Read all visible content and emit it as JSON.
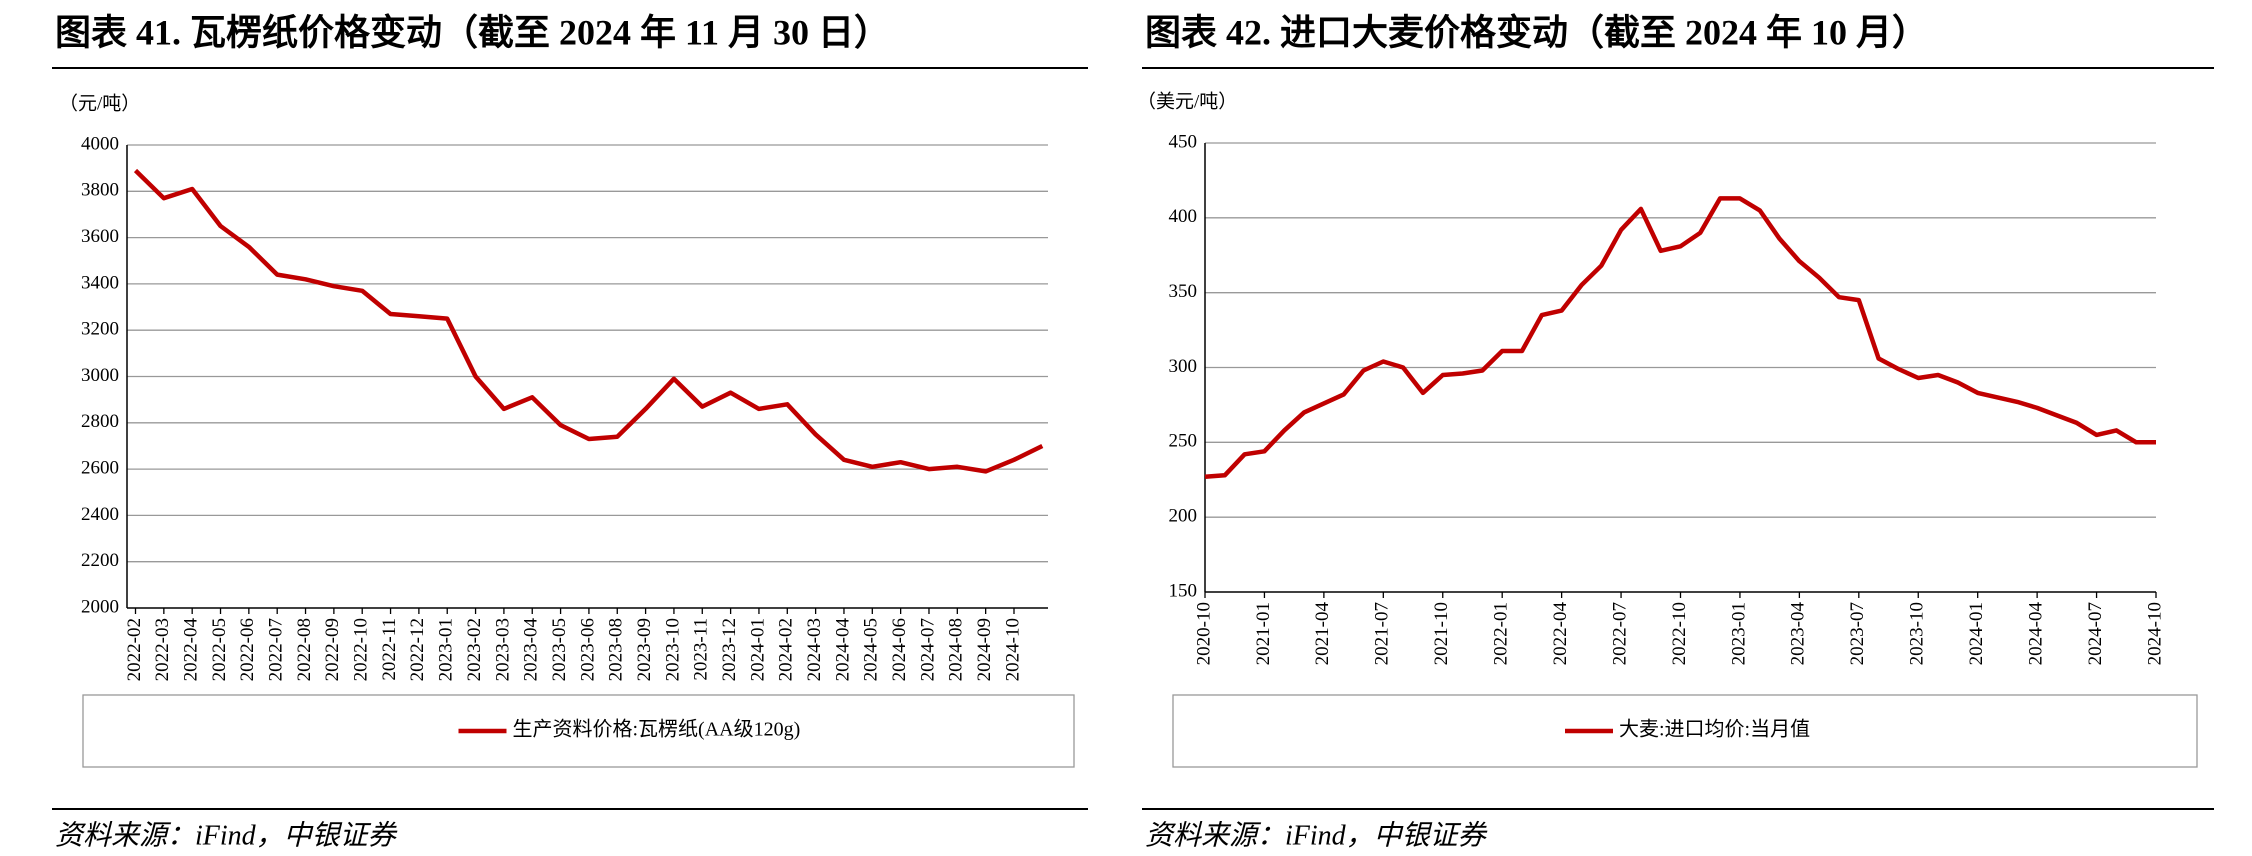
{
  "chart_data": [
    {
      "type": "line",
      "title": "图表 41. 瓦楞纸价格变动（截至 2024 年 11 月 30 日）",
      "y_label": "（元/吨）",
      "source": "资料来源：iFind，中银证券",
      "categories": [
        "2022-02",
        "2022-03",
        "2022-04",
        "2022-05",
        "2022-06",
        "2022-07",
        "2022-08",
        "2022-09",
        "2022-10",
        "2022-11",
        "2022-12",
        "2023-01",
        "2023-02",
        "2023-03",
        "2023-04",
        "2023-05",
        "2023-06",
        "2023-08",
        "2023-09",
        "2023-10",
        "2023-11",
        "2023-12",
        "2024-01",
        "2024-02",
        "2024-03",
        "2024-04",
        "2024-05",
        "2024-06",
        "2024-07",
        "2024-08",
        "2024-09",
        "2024-10",
        null
      ],
      "series": [
        {
          "name": "生产资料价格:瓦楞纸(AA级120g)",
          "color": "#c00000",
          "values": [
            3890,
            3770,
            3810,
            3650,
            3560,
            3440,
            3420,
            3390,
            3370,
            3270,
            3260,
            3250,
            3000,
            2860,
            2910,
            2790,
            2730,
            2740,
            2860,
            2990,
            2870,
            2930,
            2860,
            2880,
            2750,
            2640,
            2610,
            2630,
            2600,
            2610,
            2590,
            2640,
            2700
          ]
        }
      ],
      "ylim": [
        2000,
        4000
      ],
      "yticks": [
        2000,
        2200,
        2400,
        2600,
        2800,
        3000,
        3200,
        3400,
        3600,
        3800,
        4000
      ],
      "grid": true,
      "legend": "bottom"
    },
    {
      "type": "line",
      "title": "图表 42. 进口大麦价格变动（截至 2024 年 10 月）",
      "y_label": "（美元/吨）",
      "source": "资料来源：iFind，中银证券",
      "categories": [
        "2020-10",
        null,
        null,
        "2021-01",
        null,
        null,
        "2021-04",
        null,
        null,
        "2021-07",
        null,
        null,
        "2021-10",
        null,
        null,
        "2022-01",
        null,
        null,
        "2022-04",
        null,
        null,
        "2022-07",
        null,
        null,
        "2022-10",
        null,
        null,
        "2023-01",
        null,
        null,
        "2023-04",
        null,
        null,
        "2023-07",
        null,
        null,
        "2023-10",
        null,
        null,
        "2024-01",
        null,
        null,
        "2024-04",
        null,
        null,
        "2024-07",
        null,
        null,
        "2024-10"
      ],
      "series": [
        {
          "name": "大麦:进口均价:当月值",
          "color": "#c00000",
          "values": [
            227,
            228,
            242,
            244,
            258,
            270,
            276,
            282,
            298,
            304,
            300,
            283,
            295,
            296,
            298,
            311,
            311,
            335,
            338,
            355,
            368,
            392,
            406,
            378,
            381,
            390,
            413,
            413,
            405,
            386,
            371,
            360,
            347,
            345,
            306,
            299,
            293,
            295,
            290,
            283,
            280,
            277,
            273,
            268,
            263,
            255,
            258,
            250,
            250
          ]
        }
      ],
      "ylim": [
        150,
        450
      ],
      "yticks": [
        150,
        200,
        250,
        300,
        350,
        400,
        450
      ],
      "grid": true,
      "legend": "bottom"
    }
  ]
}
